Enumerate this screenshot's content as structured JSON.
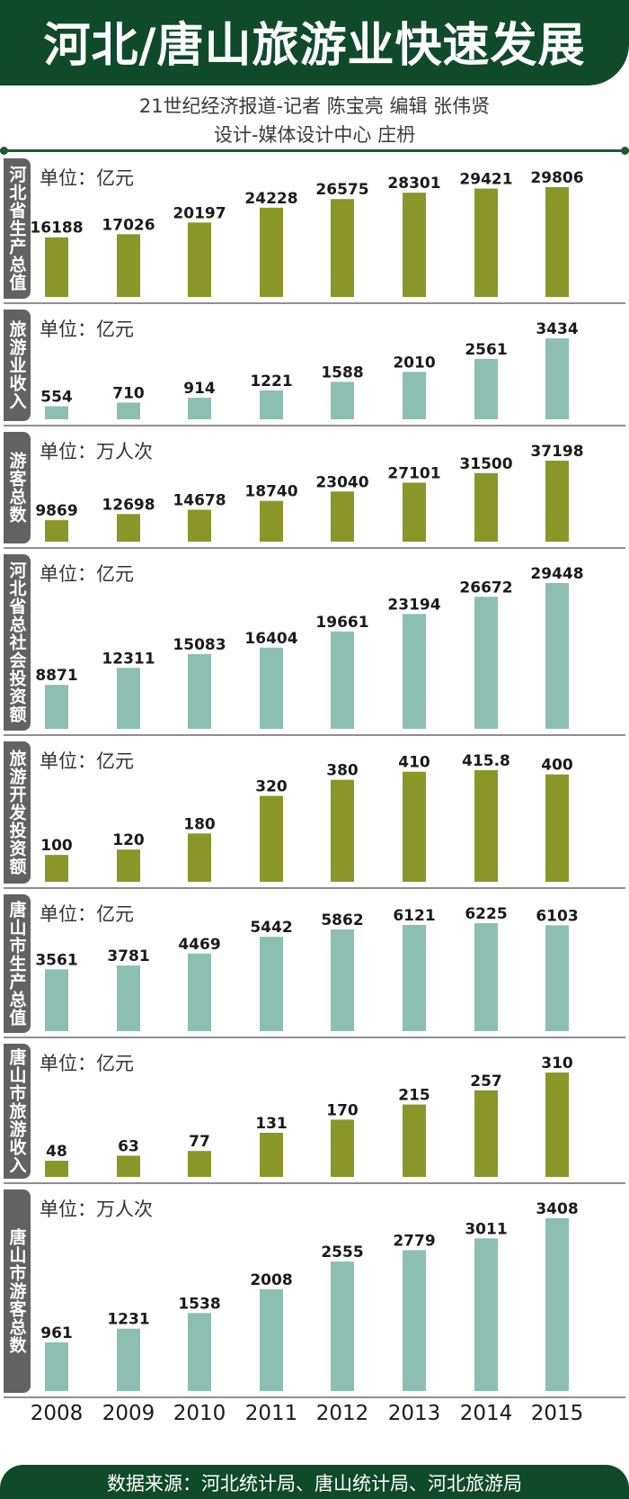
{
  "header": {
    "title": "河北/唐山旅游业快速发展",
    "credit_line1": "21世纪经济报道-记者  陈宝亮    编辑  张伟贤",
    "credit_line2": "设计-媒体设计中心  庄枬"
  },
  "colors": {
    "header_bg": "#0f4a2b",
    "olive": "#8a9628",
    "teal": "#8cbfb2",
    "tab_gray": "#626262"
  },
  "x_axis": [
    "2008",
    "2009",
    "2010",
    "2011",
    "2012",
    "2013",
    "2014",
    "2015"
  ],
  "chart_data": [
    {
      "type": "bar",
      "title": "河北省生产总值",
      "unit": "单位：亿元",
      "color": "olive",
      "categories": [
        "2008",
        "2009",
        "2010",
        "2011",
        "2012",
        "2013",
        "2014",
        "2015"
      ],
      "values": [
        16188,
        17026,
        20197,
        24228,
        26575,
        28301,
        29421,
        29806
      ],
      "labels": [
        "16188",
        "17026",
        "20197",
        "24228",
        "26575",
        "28301",
        "29421",
        "29806"
      ]
    },
    {
      "type": "bar",
      "title": "旅游业收入",
      "unit": "单位：亿元",
      "color": "teal",
      "categories": [
        "2008",
        "2009",
        "2010",
        "2011",
        "2012",
        "2013",
        "2014",
        "2015"
      ],
      "values": [
        554,
        710,
        914,
        1221,
        1588,
        2010,
        2561,
        3434
      ],
      "labels": [
        "554",
        "710",
        "914",
        "1221",
        "1588",
        "2010",
        "2561",
        "3434"
      ]
    },
    {
      "type": "bar",
      "title": "游客总数",
      "unit": "单位：万人次",
      "color": "olive",
      "categories": [
        "2008",
        "2009",
        "2010",
        "2011",
        "2012",
        "2013",
        "2014",
        "2015"
      ],
      "values": [
        9869,
        12698,
        14678,
        18740,
        23040,
        27101,
        31500,
        37198
      ],
      "labels": [
        "9869",
        "12698",
        "14678",
        "18740",
        "23040",
        "27101",
        "31500",
        "37198"
      ]
    },
    {
      "type": "bar",
      "title": "河北省总社会投资额",
      "unit": "单位：亿元",
      "color": "teal",
      "categories": [
        "2008",
        "2009",
        "2010",
        "2011",
        "2012",
        "2013",
        "2014",
        "2015"
      ],
      "values": [
        8871,
        12311,
        15083,
        16404,
        19661,
        23194,
        26672,
        29448
      ],
      "labels": [
        "8871",
        "12311",
        "15083",
        "16404",
        "19661",
        "23194",
        "26672",
        "29448"
      ]
    },
    {
      "type": "bar",
      "title": "旅游开发投资额",
      "unit": "单位：亿元",
      "color": "olive",
      "categories": [
        "2008",
        "2009",
        "2010",
        "2011",
        "2012",
        "2013",
        "2014",
        "2015"
      ],
      "values": [
        100,
        120,
        180,
        320,
        380,
        410,
        415.8,
        400
      ],
      "labels": [
        "100",
        "120",
        "180",
        "320",
        "380",
        "410",
        "415.8",
        "400"
      ]
    },
    {
      "type": "bar",
      "title": "唐山市生产总值",
      "unit": "单位：亿元",
      "color": "teal",
      "categories": [
        "2008",
        "2009",
        "2010",
        "2011",
        "2012",
        "2013",
        "2014",
        "2015"
      ],
      "values": [
        3561,
        3781,
        4469,
        5442,
        5862,
        6121,
        6225,
        6103
      ],
      "labels": [
        "3561",
        "3781",
        "4469",
        "5442",
        "5862",
        "6121",
        "6225",
        "6103"
      ]
    },
    {
      "type": "bar",
      "title": "唐山市旅游收入",
      "unit": "单位：亿元",
      "color": "olive",
      "categories": [
        "2008",
        "2009",
        "2010",
        "2011",
        "2012",
        "2013",
        "2014",
        "2015"
      ],
      "values": [
        48,
        63,
        77,
        131,
        170,
        215,
        257,
        310
      ],
      "labels": [
        "48",
        "63",
        "77",
        "131",
        "170",
        "215",
        "257",
        "310"
      ]
    },
    {
      "type": "bar",
      "title": "唐山市游客总数",
      "unit": "单位：万人次",
      "color": "teal",
      "categories": [
        "2008",
        "2009",
        "2010",
        "2011",
        "2012",
        "2013",
        "2014",
        "2015"
      ],
      "values": [
        961,
        1231,
        1538,
        2008,
        2555,
        2779,
        3011,
        3408
      ],
      "labels": [
        "961",
        "1231",
        "1538",
        "2008",
        "2555",
        "2779",
        "3011",
        "3408"
      ]
    }
  ],
  "footer": {
    "source": "数据来源：河北统计局、唐山统计局、河北旅游局"
  }
}
